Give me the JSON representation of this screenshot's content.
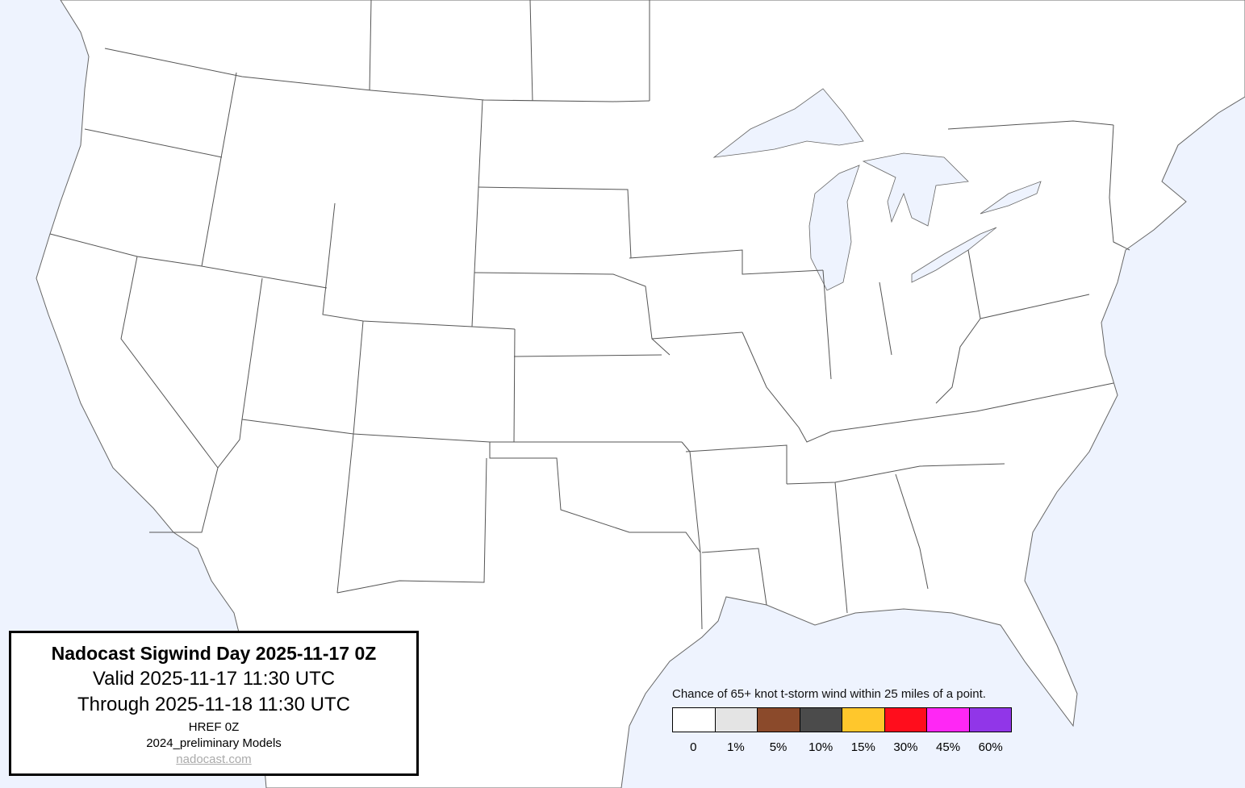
{
  "info": {
    "title": "Nadocast Sigwind Day 2025-11-17 0Z",
    "valid": "Valid 2025-11-17 11:30 UTC",
    "through": "Through 2025-11-18 11:30 UTC",
    "model": "HREF 0Z",
    "models_version": "2024_preliminary Models",
    "link": "nadocast.com"
  },
  "legend": {
    "title": "Chance of 65+ knot t-storm wind within 25 miles of a point.",
    "items": [
      {
        "label": "0",
        "color": "#ffffff"
      },
      {
        "label": "1%",
        "color": "#e4e4e4"
      },
      {
        "label": "5%",
        "color": "#8b4a2b"
      },
      {
        "label": "10%",
        "color": "#4b4b4b"
      },
      {
        "label": "15%",
        "color": "#ffc72c"
      },
      {
        "label": "30%",
        "color": "#ff0d1c"
      },
      {
        "label": "45%",
        "color": "#ff27f5"
      },
      {
        "label": "60%",
        "color": "#9136e8"
      }
    ]
  },
  "colors": {
    "water": "#eef3fe",
    "land": "#ffffff",
    "border": "#555555"
  }
}
